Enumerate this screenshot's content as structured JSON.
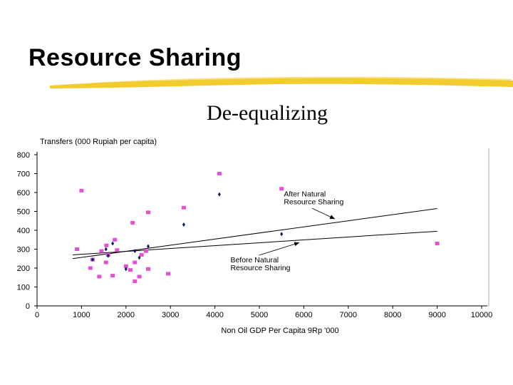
{
  "slide": {
    "title": "Resource Sharing",
    "subtitle": "De-equalizing",
    "accent_color": "#f2cc2e"
  },
  "chart_data": {
    "type": "scatter",
    "title": "",
    "ylabel": "Transfers (000 Rupiah per capita)",
    "xlabel": "Non Oil GDP Per Capita 9Rp '000",
    "xlim": [
      0,
      10000
    ],
    "ylim": [
      0,
      800
    ],
    "xticks": [
      "0",
      "1000",
      "2000",
      "3000",
      "4000",
      "5000",
      "6000",
      "7000",
      "8000",
      "9000",
      "10000"
    ],
    "yticks": [
      "0",
      "100",
      "200",
      "300",
      "400",
      "500",
      "600",
      "700",
      "800"
    ],
    "grid": false,
    "series": [
      {
        "marker": "square",
        "color": "#e64fd1",
        "points": [
          [
            900,
            300
          ],
          [
            1000,
            610
          ],
          [
            1200,
            200
          ],
          [
            1250,
            245
          ],
          [
            1400,
            155
          ],
          [
            1450,
            290
          ],
          [
            1550,
            230
          ],
          [
            1560,
            320
          ],
          [
            1600,
            270
          ],
          [
            1700,
            160
          ],
          [
            1750,
            350
          ],
          [
            1800,
            295
          ],
          [
            2000,
            210
          ],
          [
            2100,
            190
          ],
          [
            2150,
            440
          ],
          [
            2200,
            130
          ],
          [
            2200,
            230
          ],
          [
            2300,
            155
          ],
          [
            2350,
            270
          ],
          [
            2450,
            290
          ],
          [
            2500,
            495
          ],
          [
            2500,
            195
          ],
          [
            2950,
            170
          ],
          [
            3300,
            520
          ],
          [
            4100,
            700
          ],
          [
            5500,
            620
          ],
          [
            9000,
            330
          ]
        ]
      },
      {
        "marker": "diamond",
        "color": "#0a1a66",
        "points": [
          [
            1250,
            245
          ],
          [
            1550,
            300
          ],
          [
            1600,
            265
          ],
          [
            1700,
            330
          ],
          [
            2000,
            195
          ],
          [
            2200,
            290
          ],
          [
            2300,
            255
          ],
          [
            2500,
            315
          ],
          [
            3300,
            430
          ],
          [
            4100,
            590
          ],
          [
            5500,
            380
          ]
        ]
      }
    ],
    "lines": [
      {
        "x": [
          800,
          9000
        ],
        "y": [
          250,
          515
        ]
      },
      {
        "x": [
          800,
          9000
        ],
        "y": [
          270,
          395
        ]
      }
    ],
    "annotations": [
      {
        "text_lines": [
          "After Natural",
          "Resource Sharing"
        ],
        "x": 5550,
        "y": 580,
        "arrow_to": [
          6700,
          460
        ]
      },
      {
        "text_lines": [
          "Before Natural",
          "Resource Sharing"
        ],
        "x": 4350,
        "y": 230,
        "arrow_to": [
          5900,
          335
        ]
      }
    ]
  }
}
